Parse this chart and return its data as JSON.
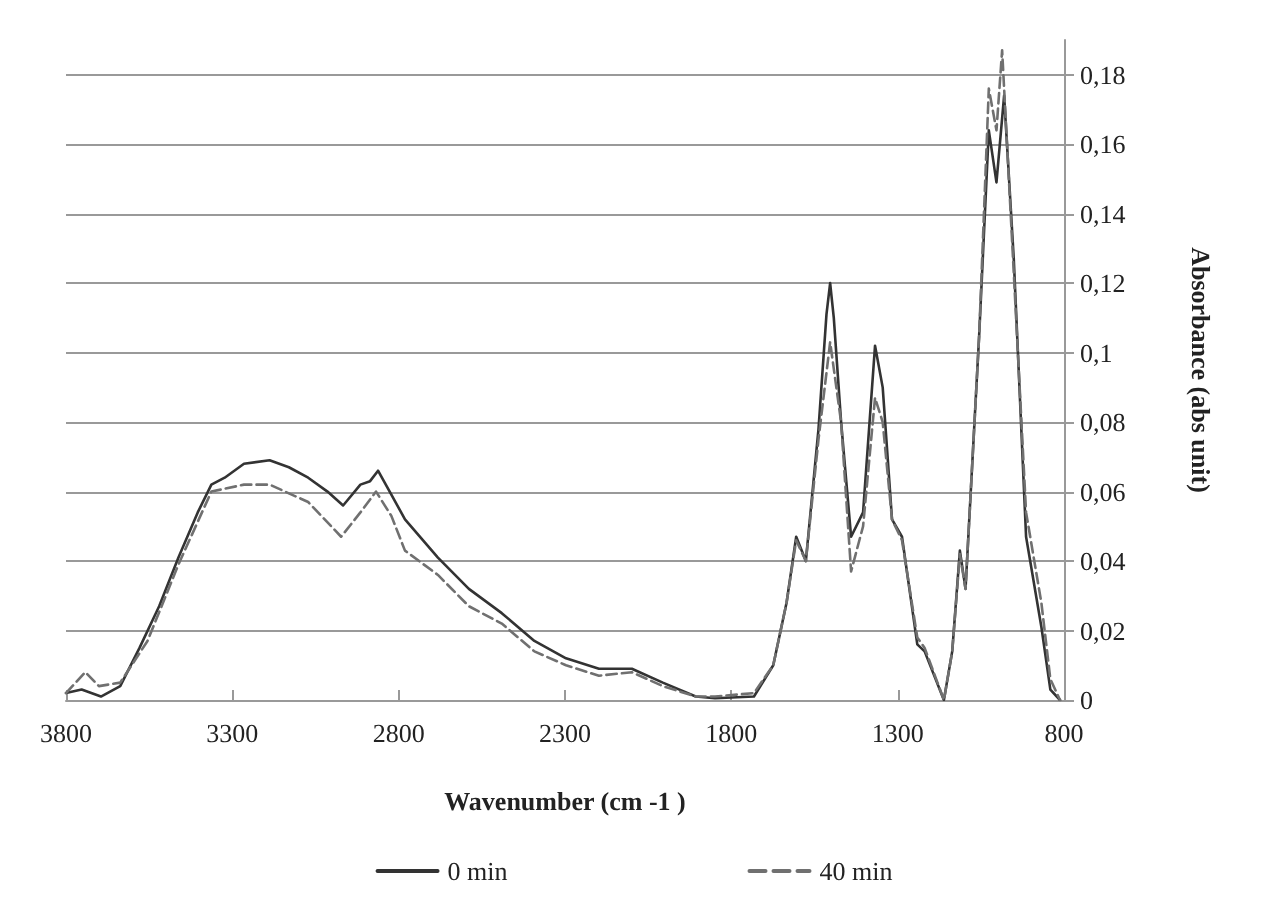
{
  "chart_data": {
    "type": "line",
    "xlabel": "Wavenumber (cm -1 )",
    "ylabel": "Absorbance (abs unit)",
    "xlim": [
      3800,
      800
    ],
    "xticks": [
      3800,
      3300,
      2800,
      2300,
      1800,
      1300,
      800
    ],
    "ylim": [
      0,
      0.19
    ],
    "yticks": [
      0,
      {
        "value": 0.02,
        "label": "0,02"
      },
      {
        "value": 0.04,
        "label": "0,04"
      },
      {
        "value": 0.06,
        "label": "0,06"
      },
      {
        "value": 0.08,
        "label": "0,08"
      },
      {
        "value": 0.1,
        "label": "0,1"
      },
      {
        "value": 0.12,
        "label": "0,12"
      },
      {
        "value": 0.14,
        "label": "0,14"
      },
      {
        "value": 0.16,
        "label": "0,16"
      },
      {
        "value": 0.18,
        "label": "0,18"
      }
    ],
    "grid": "y",
    "legend": "bottom",
    "marker": "none",
    "series": [
      {
        "name": "0 min",
        "color": "#333333",
        "line_style": "solid",
        "x": [
          3800,
          3753,
          3695,
          3637,
          3579,
          3520,
          3462,
          3404,
          3363,
          3323,
          3265,
          3188,
          3130,
          3072,
          3014,
          2967,
          2915,
          2886,
          2862,
          2827,
          2781,
          2682,
          2589,
          2490,
          2392,
          2297,
          2198,
          2099,
          2006,
          1907,
          1849,
          1732,
          1674,
          1634,
          1605,
          1576,
          1538,
          1514,
          1503,
          1492,
          1470,
          1440,
          1404,
          1368,
          1345,
          1317,
          1287,
          1241,
          1219,
          1161,
          1136,
          1113,
          1096,
          1055,
          1026,
          1003,
          980,
          951,
          914,
          868,
          841,
          812
        ],
        "values": [
          0.002,
          0.003,
          0.001,
          0.004,
          0.015,
          0.027,
          0.041,
          0.054,
          0.062,
          0.064,
          0.068,
          0.069,
          0.067,
          0.064,
          0.06,
          0.056,
          0.062,
          0.063,
          0.066,
          0.06,
          0.052,
          0.041,
          0.032,
          0.025,
          0.017,
          0.012,
          0.009,
          0.009,
          0.005,
          0.001,
          0.0005,
          0.001,
          0.01,
          0.028,
          0.047,
          0.04,
          0.078,
          0.111,
          0.12,
          0.11,
          0.08,
          0.047,
          0.054,
          0.102,
          0.09,
          0.052,
          0.047,
          0.016,
          0.014,
          0,
          0.014,
          0.043,
          0.032,
          0.105,
          0.164,
          0.149,
          0.174,
          0.127,
          0.047,
          0.021,
          0.003,
          0
        ]
      },
      {
        "name": "40 min",
        "color": "#707070",
        "line_style": "dashed",
        "x": [
          3800,
          3742,
          3701,
          3637,
          3555,
          3462,
          3363,
          3265,
          3188,
          3072,
          2973,
          2915,
          2868,
          2822,
          2781,
          2682,
          2589,
          2490,
          2392,
          2297,
          2198,
          2099,
          2006,
          1907,
          1849,
          1732,
          1674,
          1634,
          1605,
          1576,
          1538,
          1503,
          1470,
          1440,
          1404,
          1368,
          1345,
          1317,
          1287,
          1241,
          1219,
          1161,
          1136,
          1113,
          1096,
          1055,
          1026,
          1003,
          986,
          951,
          914,
          868,
          841,
          812
        ],
        "values": [
          0.002,
          0.008,
          0.004,
          0.005,
          0.017,
          0.039,
          0.06,
          0.062,
          0.062,
          0.057,
          0.047,
          0.054,
          0.06,
          0.053,
          0.043,
          0.036,
          0.027,
          0.022,
          0.014,
          0.01,
          0.007,
          0.008,
          0.004,
          0.001,
          0.001,
          0.002,
          0.01,
          0.028,
          0.046,
          0.04,
          0.075,
          0.103,
          0.08,
          0.037,
          0.05,
          0.087,
          0.08,
          0.052,
          0.046,
          0.018,
          0.015,
          0,
          0.014,
          0.042,
          0.032,
          0.105,
          0.176,
          0.164,
          0.187,
          0.123,
          0.054,
          0.028,
          0.006,
          0
        ]
      }
    ]
  }
}
